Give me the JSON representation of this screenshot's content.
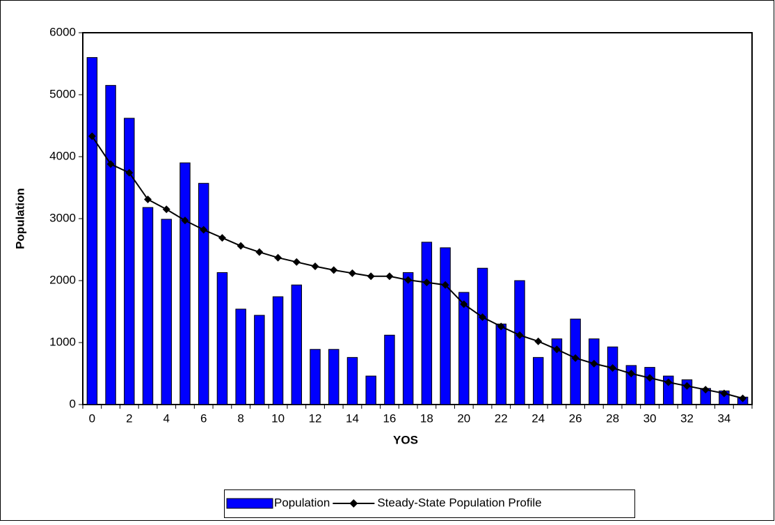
{
  "chart_data": {
    "type": "bar",
    "x_label": "YOS",
    "y_label": "Population",
    "categories": [
      0,
      null,
      2,
      null,
      4,
      null,
      6,
      null,
      8,
      null,
      10,
      null,
      12,
      null,
      14,
      null,
      16,
      null,
      18,
      null,
      20,
      null,
      22,
      null,
      24,
      null,
      26,
      null,
      28,
      null,
      30,
      null,
      32,
      null,
      34,
      null
    ],
    "series": [
      {
        "name": "Population",
        "type": "bar",
        "color": "#0000ff",
        "values": [
          5600,
          5150,
          4620,
          3180,
          2990,
          3900,
          3570,
          2130,
          1540,
          1440,
          1740,
          1930,
          890,
          890,
          760,
          460,
          1120,
          2130,
          2620,
          2530,
          1810,
          2200,
          1300,
          2000,
          760,
          1060,
          1380,
          1060,
          930,
          630,
          600,
          460,
          400,
          260,
          220,
          120
        ]
      },
      {
        "name": "Steady-State Population Profile",
        "type": "line",
        "color": "#000000",
        "values": [
          4330,
          3880,
          3740,
          3310,
          3150,
          2970,
          2820,
          2690,
          2560,
          2460,
          2370,
          2300,
          2230,
          2170,
          2120,
          2070,
          2070,
          2010,
          1970,
          1930,
          1620,
          1410,
          1260,
          1120,
          1020,
          890,
          750,
          660,
          590,
          500,
          430,
          360,
          300,
          240,
          180,
          100
        ]
      }
    ],
    "ylim": [
      0,
      6000
    ],
    "yticks": [
      0,
      1000,
      2000,
      3000,
      4000,
      5000,
      6000
    ],
    "grid": false,
    "legend": "bottom"
  }
}
